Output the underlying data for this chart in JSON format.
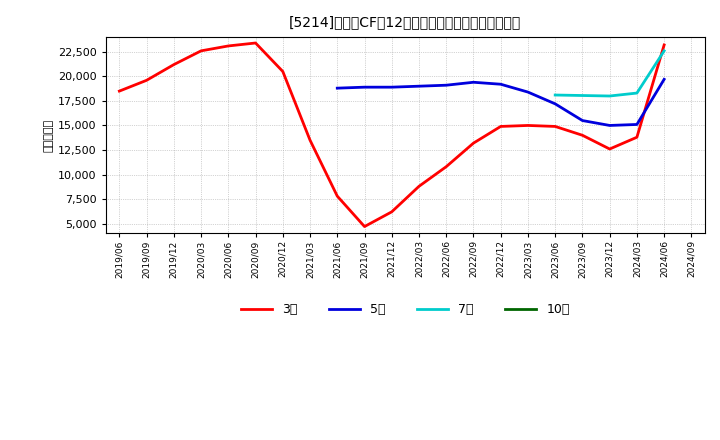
{
  "title": "[5214]　投賄CFの12か月移動合計の標準偏差の推移",
  "ylabel": "（百万円）",
  "background_color": "#ffffff",
  "plot_bg_color": "#ffffff",
  "grid_color": "#aaaaaa",
  "ylim": [
    4000,
    24000
  ],
  "yticks": [
    5000,
    7500,
    10000,
    12500,
    15000,
    17500,
    20000,
    22500
  ],
  "series": {
    "3年": {
      "color": "#ff0000",
      "data": [
        [
          "2019/06",
          18500
        ],
        [
          "2019/09",
          19600
        ],
        [
          "2019/12",
          21200
        ],
        [
          "2020/03",
          22600
        ],
        [
          "2020/06",
          23100
        ],
        [
          "2020/09",
          23400
        ],
        [
          "2020/12",
          20500
        ],
        [
          "2021/03",
          13500
        ],
        [
          "2021/06",
          7800
        ],
        [
          "2021/09",
          4700
        ],
        [
          "2021/12",
          6200
        ],
        [
          "2022/03",
          8800
        ],
        [
          "2022/06",
          10800
        ],
        [
          "2022/09",
          13200
        ],
        [
          "2022/12",
          14900
        ],
        [
          "2023/03",
          15000
        ],
        [
          "2023/06",
          14900
        ],
        [
          "2023/09",
          14000
        ],
        [
          "2023/12",
          12600
        ],
        [
          "2024/03",
          13800
        ],
        [
          "2024/06",
          23200
        ]
      ]
    },
    "5年": {
      "color": "#0000dd",
      "data": [
        [
          "2021/06",
          18800
        ],
        [
          "2021/09",
          18900
        ],
        [
          "2021/12",
          18900
        ],
        [
          "2022/03",
          19000
        ],
        [
          "2022/06",
          19100
        ],
        [
          "2022/09",
          19400
        ],
        [
          "2022/12",
          19200
        ],
        [
          "2023/03",
          18400
        ],
        [
          "2023/06",
          17200
        ],
        [
          "2023/09",
          15500
        ],
        [
          "2023/12",
          15000
        ],
        [
          "2024/03",
          15100
        ],
        [
          "2024/06",
          19700
        ]
      ]
    },
    "7年": {
      "color": "#00cccc",
      "data": [
        [
          "2023/06",
          18100
        ],
        [
          "2023/09",
          18050
        ],
        [
          "2023/12",
          18000
        ],
        [
          "2024/03",
          18300
        ],
        [
          "2024/06",
          22600
        ]
      ]
    },
    "10年": {
      "color": "#006600",
      "data": []
    }
  },
  "x_tick_labels": [
    "2019/06",
    "2019/09",
    "2019/12",
    "2020/03",
    "2020/06",
    "2020/09",
    "2020/12",
    "2021/03",
    "2021/06",
    "2021/09",
    "2021/12",
    "2022/03",
    "2022/06",
    "2022/09",
    "2022/12",
    "2023/03",
    "2023/06",
    "2023/09",
    "2023/12",
    "2024/03",
    "2024/06",
    "2024/09"
  ],
  "legend_labels": [
    "3年",
    "5年",
    "7年",
    "10年"
  ],
  "legend_colors": [
    "#ff0000",
    "#0000dd",
    "#00cccc",
    "#006600"
  ]
}
